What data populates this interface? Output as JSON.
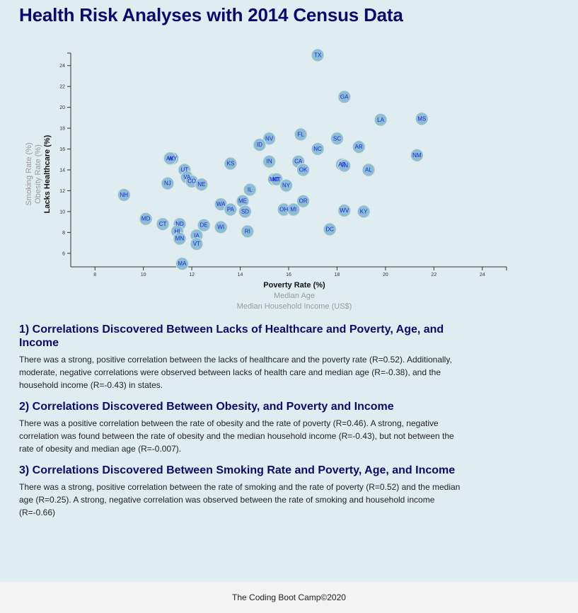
{
  "title": "Health Risk Analyses with 2014 Census Data",
  "chart_data": {
    "type": "scatter",
    "x_axis": {
      "labels": [
        "Poverty Rate (%)",
        "Median Age",
        "Median Household Income (US$)"
      ],
      "active": 0,
      "range": [
        7,
        25
      ],
      "ticks": [
        8,
        10,
        12,
        14,
        16,
        18,
        20,
        22,
        24
      ]
    },
    "y_axis": {
      "labels": [
        "Lacks Healthcare (%)",
        "Obesity Rate (%)",
        "Smoking Rate (%)"
      ],
      "active": 0,
      "range": [
        4.7,
        25.2
      ],
      "ticks": [
        6,
        8,
        10,
        12,
        14,
        16,
        18,
        20,
        22,
        24
      ]
    },
    "points": [
      {
        "abbr": "TX",
        "x": 17.2,
        "y": 25.0
      },
      {
        "abbr": "GA",
        "x": 18.3,
        "y": 21.0
      },
      {
        "abbr": "LA",
        "x": 19.8,
        "y": 18.8
      },
      {
        "abbr": "MS",
        "x": 21.5,
        "y": 18.9
      },
      {
        "abbr": "FL",
        "x": 16.5,
        "y": 17.4
      },
      {
        "abbr": "NV",
        "x": 15.2,
        "y": 17.0
      },
      {
        "abbr": "SC",
        "x": 18.0,
        "y": 17.0
      },
      {
        "abbr": "ID",
        "x": 14.8,
        "y": 16.4
      },
      {
        "abbr": "NC",
        "x": 17.2,
        "y": 16.0
      },
      {
        "abbr": "AR",
        "x": 18.9,
        "y": 16.2
      },
      {
        "abbr": "NM",
        "x": 21.3,
        "y": 15.4
      },
      {
        "abbr": "WY",
        "x": 11.2,
        "y": 15.1
      },
      {
        "abbr": "AK",
        "x": 11.1,
        "y": 15.1
      },
      {
        "abbr": "IN",
        "x": 15.2,
        "y": 14.8
      },
      {
        "abbr": "CA",
        "x": 16.4,
        "y": 14.8
      },
      {
        "abbr": "KS",
        "x": 13.6,
        "y": 14.6
      },
      {
        "abbr": "AZ",
        "x": 18.2,
        "y": 14.5
      },
      {
        "abbr": "TN",
        "x": 18.3,
        "y": 14.4
      },
      {
        "abbr": "UT",
        "x": 11.7,
        "y": 14.0
      },
      {
        "abbr": "OK",
        "x": 16.6,
        "y": 14.0
      },
      {
        "abbr": "AL",
        "x": 19.3,
        "y": 14.0
      },
      {
        "abbr": "VA",
        "x": 11.8,
        "y": 13.3
      },
      {
        "abbr": "MO",
        "x": 15.4,
        "y": 13.1
      },
      {
        "abbr": "MT",
        "x": 15.5,
        "y": 13.1
      },
      {
        "abbr": "CO",
        "x": 12.0,
        "y": 12.9
      },
      {
        "abbr": "NJ",
        "x": 11.0,
        "y": 12.7
      },
      {
        "abbr": "NE",
        "x": 12.4,
        "y": 12.6
      },
      {
        "abbr": "NY",
        "x": 15.9,
        "y": 12.5
      },
      {
        "abbr": "IL",
        "x": 14.4,
        "y": 12.1
      },
      {
        "abbr": "NH",
        "x": 9.2,
        "y": 11.6
      },
      {
        "abbr": "ME",
        "x": 14.1,
        "y": 11.0
      },
      {
        "abbr": "OR",
        "x": 16.6,
        "y": 11.0
      },
      {
        "abbr": "WA",
        "x": 13.2,
        "y": 10.7
      },
      {
        "abbr": "PA",
        "x": 13.6,
        "y": 10.2
      },
      {
        "abbr": "SD",
        "x": 14.2,
        "y": 10.0
      },
      {
        "abbr": "OH",
        "x": 15.8,
        "y": 10.2
      },
      {
        "abbr": "MI",
        "x": 16.2,
        "y": 10.2
      },
      {
        "abbr": "WV",
        "x": 18.3,
        "y": 10.1
      },
      {
        "abbr": "KY",
        "x": 19.1,
        "y": 10.0
      },
      {
        "abbr": "MD",
        "x": 10.1,
        "y": 9.3
      },
      {
        "abbr": "CT",
        "x": 10.8,
        "y": 8.8
      },
      {
        "abbr": "ND",
        "x": 11.5,
        "y": 8.8
      },
      {
        "abbr": "DE",
        "x": 12.5,
        "y": 8.7
      },
      {
        "abbr": "WI",
        "x": 13.2,
        "y": 8.5
      },
      {
        "abbr": "DC",
        "x": 17.7,
        "y": 8.3
      },
      {
        "abbr": "HI",
        "x": 11.4,
        "y": 8.1
      },
      {
        "abbr": "RI",
        "x": 14.3,
        "y": 8.1
      },
      {
        "abbr": "IA",
        "x": 12.2,
        "y": 7.7
      },
      {
        "abbr": "MN",
        "x": 11.5,
        "y": 7.4
      },
      {
        "abbr": "VT",
        "x": 12.2,
        "y": 6.9
      },
      {
        "abbr": "MA",
        "x": 11.6,
        "y": 5.0
      }
    ]
  },
  "findings": [
    {
      "heading": "1) Correlations Discovered Between Lacks of Healthcare and Poverty, Age, and Income",
      "body": "There was a strong, positive correlation between the lacks of healthcare and the poverty rate (R=0.52). Additionally, moderate, negative correlations were observed between lacks of health care and median age (R=-0.38), and the household income (R=-0.43) in states."
    },
    {
      "heading": "2) Correlations Discovered Between Obesity, and Poverty and Income",
      "body": "There was a positive correlation between the rate of obesity and the rate of poverty (R=0.46). A strong, negative correlation was found between the rate of obesity and the median household income (R=-0.43), but not between the rate of obesity and median age (R=-0.007)."
    },
    {
      "heading": "3) Correlations Discovered Between Smoking Rate and Poverty, Age, and Income",
      "body": "There was a strong, positive correlation between the rate of smoking and the rate of poverty (R=0.52) and the median age (R=0.25). A strong, negative correlation was observed between the rate of smoking and household income (R=-0.66)"
    }
  ],
  "footer": "The Coding Boot Camp©2020"
}
